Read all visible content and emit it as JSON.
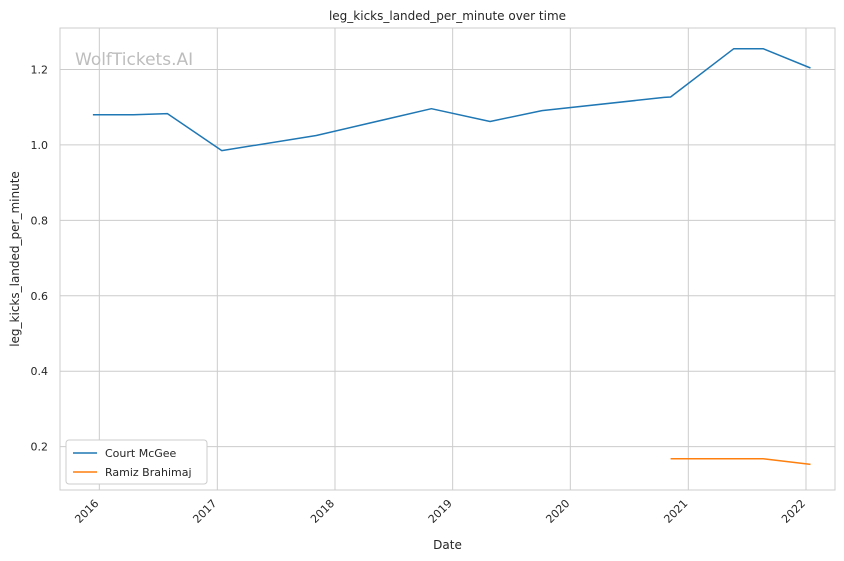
{
  "chart_data": {
    "type": "line",
    "title": "leg_kicks_landed_per_minute over time",
    "xlabel": "Date",
    "ylabel": "leg_kicks_landed_per_minute",
    "watermark": "WolfTickets.AI",
    "x_ticks": [
      "2016",
      "2017",
      "2018",
      "2019",
      "2020",
      "2021",
      "2022"
    ],
    "y_ticks": [
      "0.2",
      "0.4",
      "0.6",
      "0.8",
      "1.0",
      "1.2"
    ],
    "xlim": [
      "2015-09-01",
      "2022-04-01"
    ],
    "ylim": [
      0.085,
      1.31
    ],
    "grid": true,
    "legend_position": "lower left",
    "series": [
      {
        "name": "Court McGee",
        "color": "#1f77b4",
        "points": [
          {
            "x": "2015-12-12",
            "y": 1.08
          },
          {
            "x": "2016-04-16",
            "y": 1.08
          },
          {
            "x": "2016-07-30",
            "y": 1.083
          },
          {
            "x": "2017-01-15",
            "y": 0.985
          },
          {
            "x": "2017-11-04",
            "y": 1.025
          },
          {
            "x": "2018-10-27",
            "y": 1.096
          },
          {
            "x": "2019-04-27",
            "y": 1.062
          },
          {
            "x": "2019-10-05",
            "y": 1.091
          },
          {
            "x": "2020-10-18",
            "y": 1.126
          },
          {
            "x": "2020-11-07",
            "y": 1.127
          },
          {
            "x": "2021-05-22",
            "y": 1.255
          },
          {
            "x": "2021-08-21",
            "y": 1.255
          },
          {
            "x": "2022-01-15",
            "y": 1.204
          }
        ]
      },
      {
        "name": "Ramiz Brahimaj",
        "color": "#ff7f0e",
        "points": [
          {
            "x": "2020-11-07",
            "y": 0.168
          },
          {
            "x": "2021-08-21",
            "y": 0.168
          },
          {
            "x": "2022-01-15",
            "y": 0.153
          }
        ]
      }
    ]
  }
}
